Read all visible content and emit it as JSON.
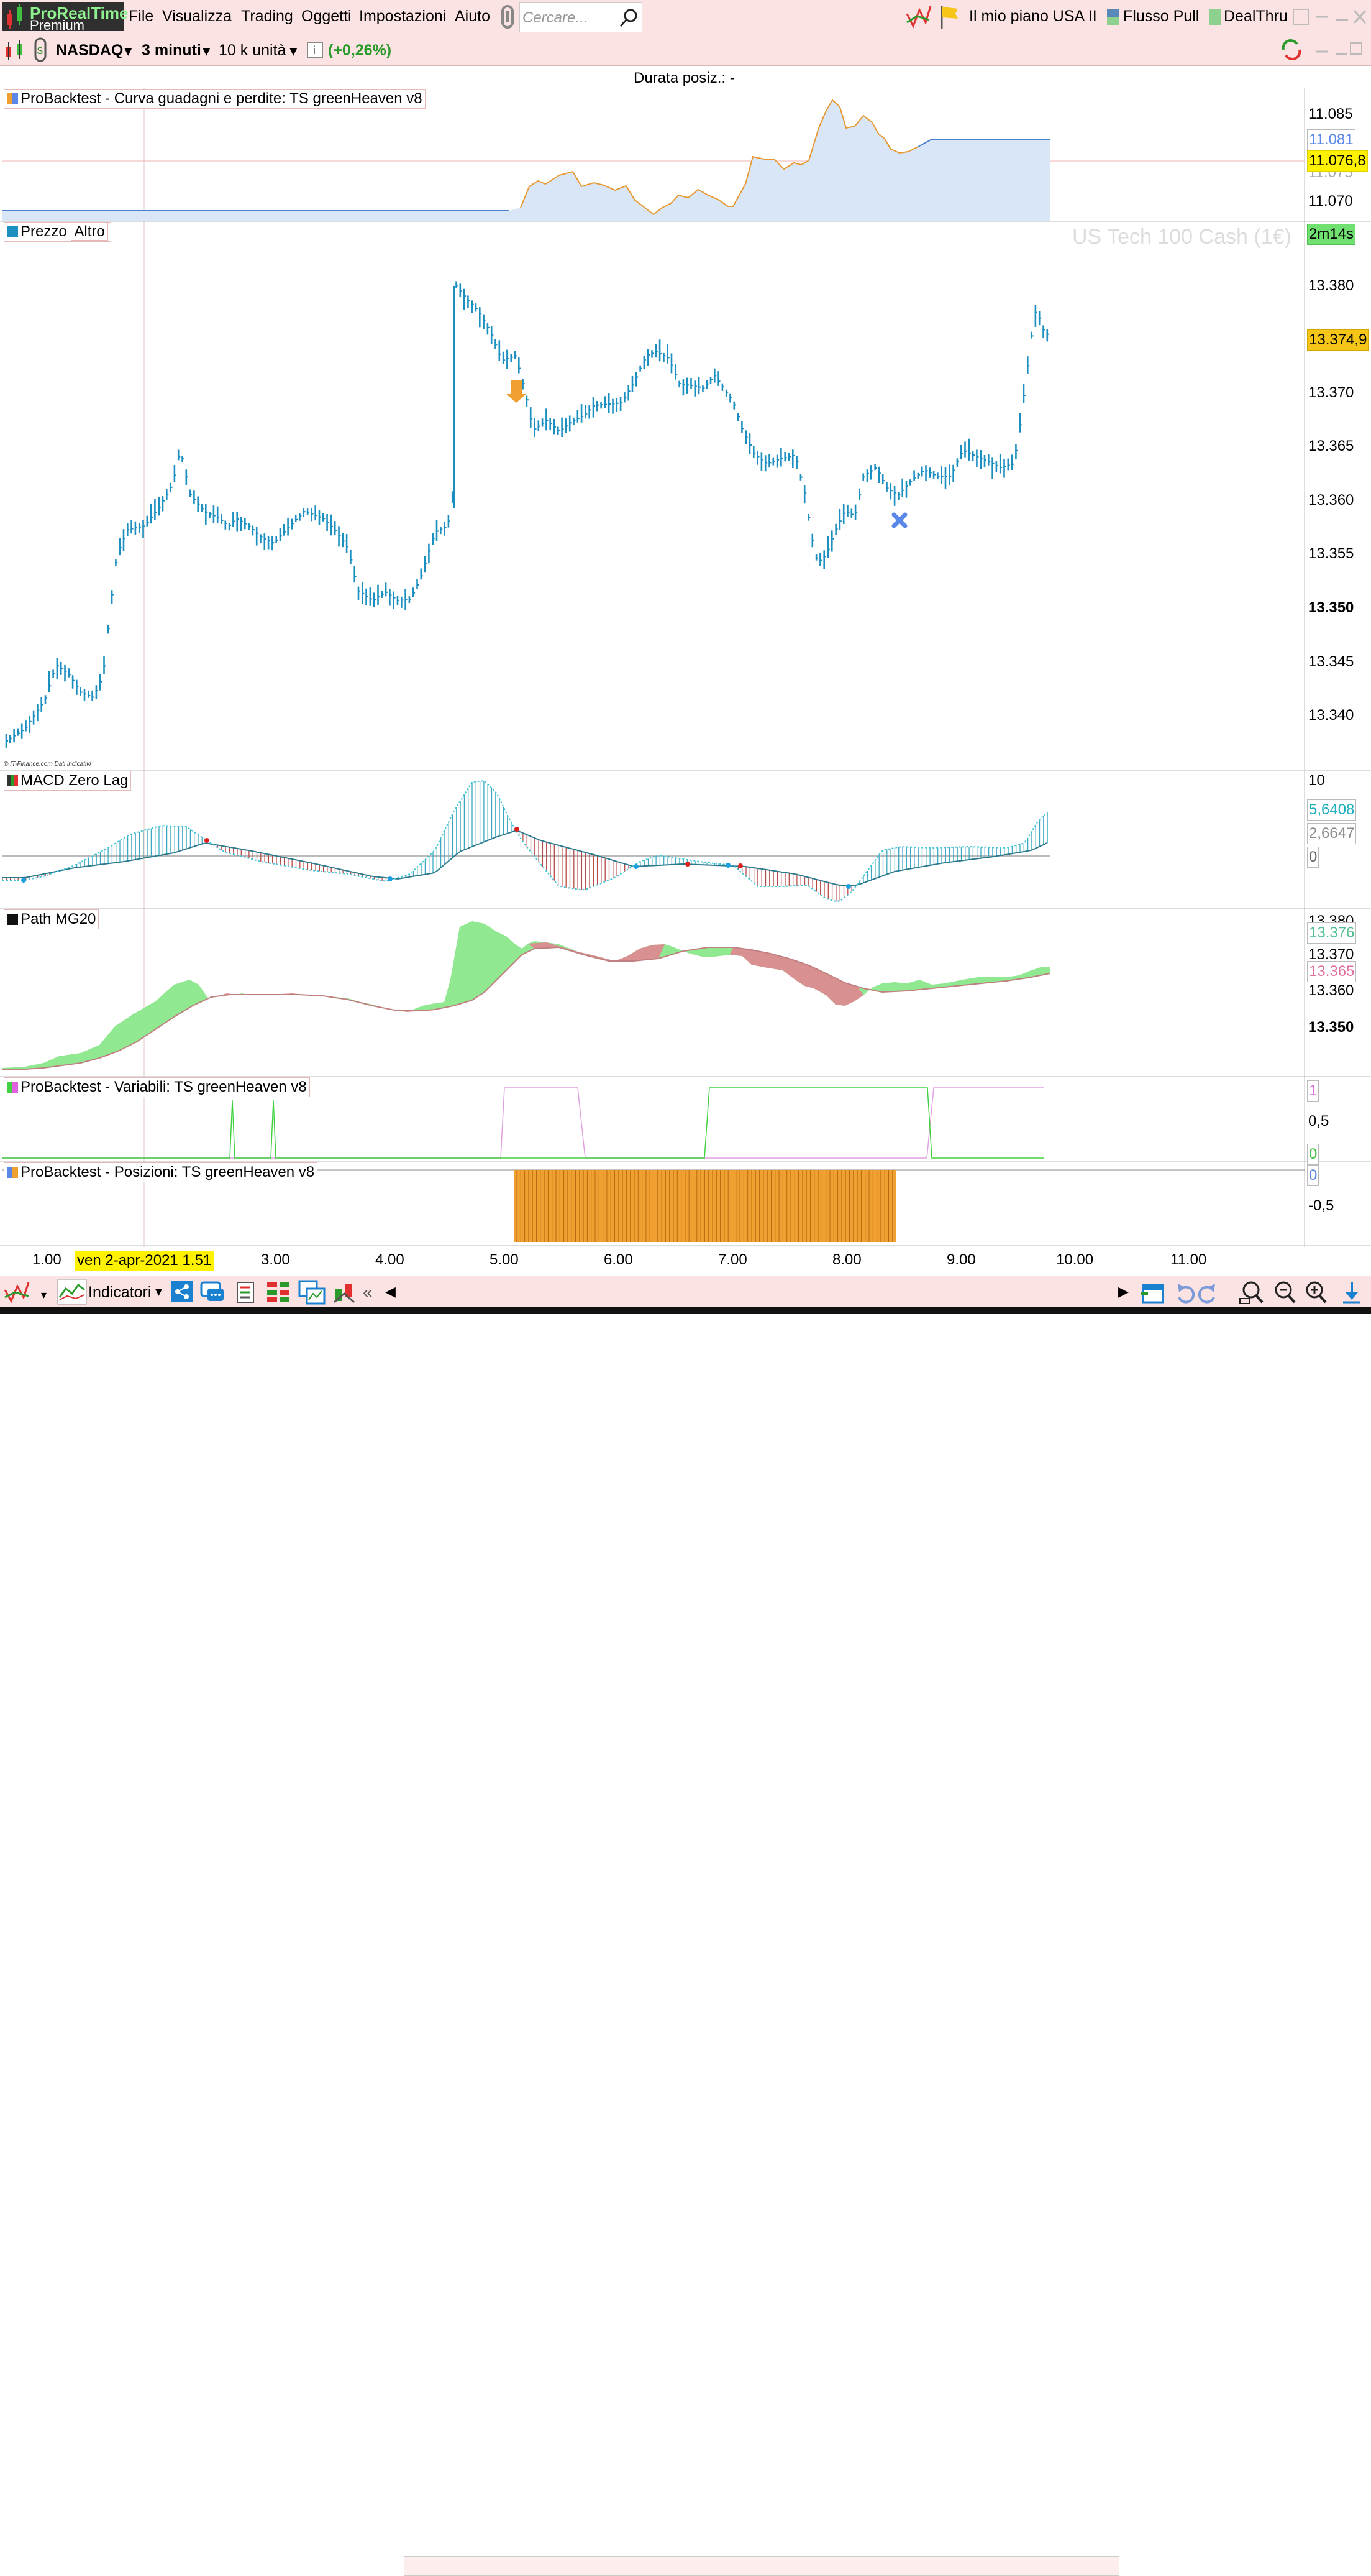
{
  "menu": {
    "brand_line1": "ProRealTime",
    "brand_line2": "Premium",
    "items": [
      "File",
      "Visualizza",
      "Trading",
      "Oggetti",
      "Impostazioni",
      "Aiuto"
    ],
    "search_placeholder": "Cercare...",
    "right": [
      "Il mio piano USA II",
      "Flusso Pull",
      "DealThru"
    ]
  },
  "toolbar": {
    "instrument": "NASDAQ",
    "timeframe": "3 minuti",
    "units": "10 k unità",
    "change": "(+0,26%)"
  },
  "header": {
    "position_duration": "Durata posiz.: -"
  },
  "colors": {
    "price": "#1b8fbf",
    "orange": "#f0a030",
    "green_fill": "#90e890",
    "red_fill": "#d89090",
    "menu_bg": "#fbe3e3"
  },
  "panels": {
    "equity": {
      "title": "ProBacktest - Curva guadagni e perdite: TS greenHeaven v8",
      "ticks": [
        "11.085",
        "11.070"
      ],
      "overlap_tick": "11.075",
      "curve_value": "11.081",
      "current": "11.076,8"
    },
    "price": {
      "title_a": "Prezzo",
      "title_b": "Altro",
      "watermark": "US Tech 100 Cash (1€)",
      "timer": "2m14s",
      "ticks": [
        "13.380",
        "13.370",
        "13.365",
        "13.360",
        "13.355",
        "13.345",
        "13.340"
      ],
      "bold_tick": "13.350",
      "current": "13.374,9",
      "credit": "© IT-Finance.com  Dati indicativi"
    },
    "macd": {
      "title": "MACD Zero Lag",
      "top_tick": "10",
      "value1": "5,6408",
      "value2": "2,6647",
      "zero": "0"
    },
    "path": {
      "title": "Path MG20",
      "ticks": [
        "13.380",
        "13.370",
        "13.360"
      ],
      "bold_tick": "13.350",
      "value1": "13.376",
      "value2": "13.365"
    },
    "variables": {
      "title": "ProBacktest - Variabili: TS greenHeaven v8",
      "one": "1",
      "half": "0,5",
      "zero": "0"
    },
    "positions": {
      "title": "ProBacktest - Posizioni: TS greenHeaven v8",
      "zero": "0",
      "neg": "-0,5"
    }
  },
  "xaxis": {
    "labels": [
      "1.00",
      "3.00",
      "4.00",
      "5.00",
      "6.00",
      "7.00",
      "8.00",
      "9.00",
      "10.00",
      "11.00"
    ],
    "cursor_label": "ven 2-apr-2021 1.51"
  },
  "bottom": {
    "indicators_label": "Indicatori"
  }
}
